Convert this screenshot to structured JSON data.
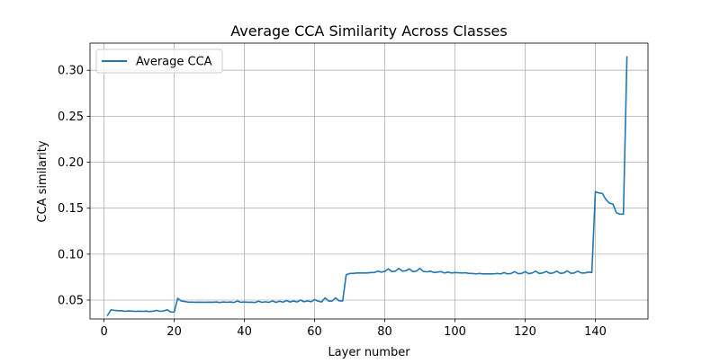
{
  "chart_data": {
    "type": "line",
    "title": "Average CCA Similarity Across Classes",
    "xlabel": "Layer number",
    "ylabel": "CCA similarity",
    "xlim": [
      -4,
      155
    ],
    "ylim": [
      0.0295,
      0.3295
    ],
    "xticks": [
      0,
      20,
      40,
      60,
      80,
      100,
      120,
      140
    ],
    "yticks": [
      0.05,
      0.1,
      0.15,
      0.2,
      0.25,
      0.3
    ],
    "xtick_labels": [
      "0",
      "20",
      "40",
      "60",
      "80",
      "100",
      "120",
      "140"
    ],
    "ytick_labels": [
      "0.05",
      "0.10",
      "0.15",
      "0.20",
      "0.25",
      "0.30"
    ],
    "grid": true,
    "legend_position": "upper-left",
    "series": [
      {
        "name": "Average CCA",
        "color": "#1f77b4",
        "x": [
          1,
          2,
          3,
          4,
          5,
          6,
          7,
          8,
          9,
          10,
          11,
          12,
          13,
          14,
          15,
          16,
          17,
          18,
          19,
          20,
          21,
          22,
          23,
          24,
          25,
          26,
          27,
          28,
          29,
          30,
          31,
          32,
          33,
          34,
          35,
          36,
          37,
          38,
          39,
          40,
          41,
          42,
          43,
          44,
          45,
          46,
          47,
          48,
          49,
          50,
          51,
          52,
          53,
          54,
          55,
          56,
          57,
          58,
          59,
          60,
          61,
          62,
          63,
          64,
          65,
          66,
          67,
          68,
          69,
          70,
          71,
          72,
          73,
          74,
          75,
          76,
          77,
          78,
          79,
          80,
          81,
          82,
          83,
          84,
          85,
          86,
          87,
          88,
          89,
          90,
          91,
          92,
          93,
          94,
          95,
          96,
          97,
          98,
          99,
          100,
          101,
          102,
          103,
          104,
          105,
          106,
          107,
          108,
          109,
          110,
          111,
          112,
          113,
          114,
          115,
          116,
          117,
          118,
          119,
          120,
          121,
          122,
          123,
          124,
          125,
          126,
          127,
          128,
          129,
          130,
          131,
          132,
          133,
          134,
          135,
          136,
          137,
          138,
          139,
          140,
          141,
          142,
          143,
          144,
          145,
          146,
          147,
          148,
          149
        ],
        "y": [
          0.0335,
          0.0395,
          0.0388,
          0.0385,
          0.0385,
          0.0378,
          0.0382,
          0.038,
          0.0378,
          0.038,
          0.0378,
          0.038,
          0.0376,
          0.038,
          0.0388,
          0.0378,
          0.0382,
          0.0395,
          0.037,
          0.0372,
          0.052,
          0.049,
          0.0485,
          0.0478,
          0.0478,
          0.0476,
          0.0478,
          0.0476,
          0.0476,
          0.0478,
          0.0476,
          0.048,
          0.0474,
          0.048,
          0.0476,
          0.048,
          0.0474,
          0.049,
          0.0476,
          0.048,
          0.0476,
          0.0478,
          0.0474,
          0.0488,
          0.0476,
          0.0482,
          0.0476,
          0.049,
          0.0476,
          0.0488,
          0.0478,
          0.0495,
          0.048,
          0.049,
          0.048,
          0.05,
          0.0482,
          0.0492,
          0.0482,
          0.0505,
          0.0488,
          0.048,
          0.0525,
          0.049,
          0.049,
          0.0525,
          0.0492,
          0.049,
          0.0775,
          0.079,
          0.079,
          0.0795,
          0.0795,
          0.0795,
          0.0795,
          0.08,
          0.08,
          0.0815,
          0.0805,
          0.0812,
          0.084,
          0.081,
          0.0815,
          0.0845,
          0.0815,
          0.082,
          0.084,
          0.081,
          0.0815,
          0.0845,
          0.0812,
          0.0808,
          0.0815,
          0.08,
          0.0805,
          0.081,
          0.0795,
          0.0805,
          0.0795,
          0.08,
          0.0798,
          0.0795,
          0.0798,
          0.079,
          0.079,
          0.0785,
          0.079,
          0.0785,
          0.0785,
          0.0785,
          0.0785,
          0.079,
          0.0785,
          0.08,
          0.0785,
          0.079,
          0.081,
          0.0788,
          0.079,
          0.081,
          0.0788,
          0.0795,
          0.0815,
          0.079,
          0.0795,
          0.0812,
          0.0792,
          0.0795,
          0.0815,
          0.0792,
          0.0795,
          0.0818,
          0.0792,
          0.0795,
          0.0815,
          0.0795,
          0.0795,
          0.0805,
          0.08,
          0.168,
          0.1665,
          0.166,
          0.1595,
          0.1555,
          0.1545,
          0.145,
          0.1435,
          0.1435,
          0.3145
        ]
      }
    ]
  }
}
